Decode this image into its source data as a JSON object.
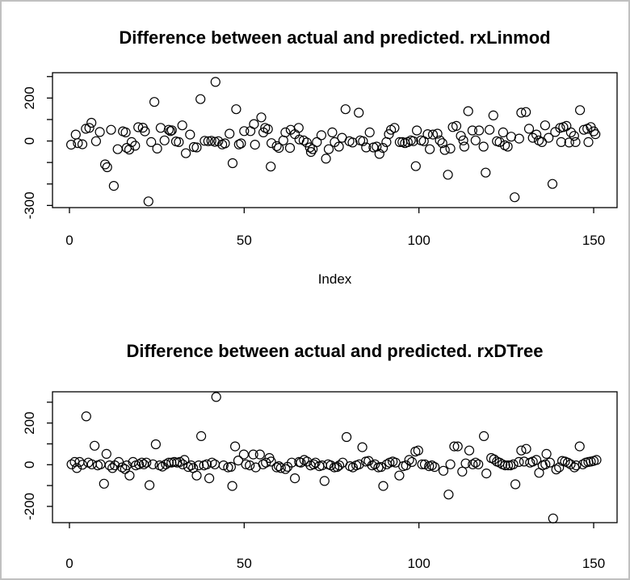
{
  "window": {
    "background": "#ffffff",
    "border_color": "#c0c0c0",
    "foreground": "#000000"
  },
  "chart_data": [
    {
      "type": "scatter",
      "title": "Difference between actual and predicted. rxLinmod",
      "xlabel": "Index",
      "ylabel": "",
      "marker": "open-circle",
      "marker_color": "#000000",
      "grid": false,
      "legend": null,
      "xlim": [
        -4.85,
        156.7
      ],
      "ylim": [
        -310,
        318
      ],
      "x_ticks": [
        0,
        50,
        100,
        150
      ],
      "x_tick_labels": [
        "0",
        "50",
        "100",
        "150"
      ],
      "y_ticks": [
        300,
        200,
        100,
        0,
        -100,
        -200,
        -300
      ],
      "y_tick_labels": [
        "",
        "200",
        "",
        "0",
        "",
        "",
        "-300"
      ],
      "points": [
        [
          0.5,
          -17
        ],
        [
          1.8,
          30
        ],
        [
          2.4,
          -10
        ],
        [
          3.7,
          -15
        ],
        [
          4.7,
          57
        ],
        [
          5.7,
          61
        ],
        [
          6.3,
          85
        ],
        [
          7.6,
          -1
        ],
        [
          8.7,
          42
        ],
        [
          10.2,
          -109
        ],
        [
          10.8,
          -122
        ],
        [
          11.9,
          52
        ],
        [
          12.7,
          -209
        ],
        [
          13.8,
          -38
        ],
        [
          15.3,
          45
        ],
        [
          16.1,
          40
        ],
        [
          16.4,
          -32
        ],
        [
          17.1,
          -40
        ],
        [
          17.8,
          -5
        ],
        [
          18.8,
          -22
        ],
        [
          19.7,
          64
        ],
        [
          21,
          62
        ],
        [
          21.6,
          45
        ],
        [
          22.6,
          -281
        ],
        [
          23.4,
          -5
        ],
        [
          24.3,
          182
        ],
        [
          25.1,
          -35
        ],
        [
          26.1,
          61
        ],
        [
          27.2,
          3
        ],
        [
          28.4,
          52
        ],
        [
          28.9,
          46
        ],
        [
          29.3,
          50
        ],
        [
          30.5,
          -2
        ],
        [
          31.3,
          -5
        ],
        [
          32.3,
          73
        ],
        [
          33.3,
          -57
        ],
        [
          34.5,
          30
        ],
        [
          35.6,
          -28
        ],
        [
          36.4,
          -30
        ],
        [
          37.5,
          195
        ],
        [
          38.7,
          1
        ],
        [
          39.7,
          -1
        ],
        [
          40.6,
          1
        ],
        [
          41.6,
          -4
        ],
        [
          41.8,
          275
        ],
        [
          42.6,
          -1
        ],
        [
          43.7,
          -16
        ],
        [
          44.5,
          -11
        ],
        [
          45.8,
          34
        ],
        [
          46.7,
          -103
        ],
        [
          47.7,
          148
        ],
        [
          48.5,
          -16
        ],
        [
          49.1,
          -11
        ],
        [
          50,
          46
        ],
        [
          51.8,
          46
        ],
        [
          52.8,
          79
        ],
        [
          53.1,
          -17
        ],
        [
          54.9,
          110
        ],
        [
          55.5,
          40
        ],
        [
          56,
          61
        ],
        [
          56.8,
          55
        ],
        [
          57.6,
          -119
        ],
        [
          57.8,
          -10
        ],
        [
          59.3,
          -24
        ],
        [
          59.9,
          -32
        ],
        [
          61.2,
          3
        ],
        [
          61.8,
          40
        ],
        [
          63.1,
          -32
        ],
        [
          63.3,
          52
        ],
        [
          64.5,
          32
        ],
        [
          65.6,
          61
        ],
        [
          65.8,
          7
        ],
        [
          67,
          3
        ],
        [
          67.9,
          -7
        ],
        [
          68.8,
          -30
        ],
        [
          69.1,
          -51
        ],
        [
          69.6,
          -38
        ],
        [
          70.8,
          -5
        ],
        [
          72.1,
          27
        ],
        [
          73.4,
          -82
        ],
        [
          74.2,
          -38
        ],
        [
          75.2,
          40
        ],
        [
          75.9,
          -5
        ],
        [
          77.1,
          -26
        ],
        [
          78,
          15
        ],
        [
          79,
          148
        ],
        [
          80.1,
          -1
        ],
        [
          81,
          -7
        ],
        [
          82.8,
          132
        ],
        [
          83.2,
          3
        ],
        [
          84,
          -1
        ],
        [
          84.9,
          -30
        ],
        [
          85.9,
          40
        ],
        [
          87,
          -30
        ],
        [
          87.9,
          -26
        ],
        [
          88.7,
          -60
        ],
        [
          89.7,
          -32
        ],
        [
          90.7,
          -5
        ],
        [
          91.4,
          32
        ],
        [
          92,
          52
        ],
        [
          93,
          61
        ],
        [
          94.5,
          -5
        ],
        [
          95.3,
          -5
        ],
        [
          96,
          -10
        ],
        [
          96.8,
          -5
        ],
        [
          97.7,
          3
        ],
        [
          98.4,
          -1
        ],
        [
          99.1,
          -117
        ],
        [
          99.4,
          49
        ],
        [
          100.6,
          3
        ],
        [
          101.4,
          -1
        ],
        [
          102.5,
          32
        ],
        [
          103.1,
          -38
        ],
        [
          104,
          30
        ],
        [
          105.3,
          34
        ],
        [
          106,
          3
        ],
        [
          106.7,
          -10
        ],
        [
          107.4,
          -42
        ],
        [
          108.3,
          -157
        ],
        [
          109,
          -35
        ],
        [
          109.7,
          65
        ],
        [
          110.7,
          70
        ],
        [
          112,
          24
        ],
        [
          112.7,
          3
        ],
        [
          113,
          -26
        ],
        [
          114.1,
          139
        ],
        [
          115.3,
          49
        ],
        [
          116.2,
          3
        ],
        [
          117.2,
          49
        ],
        [
          118.5,
          -26
        ],
        [
          119.1,
          -147
        ],
        [
          120.2,
          52
        ],
        [
          121.3,
          119
        ],
        [
          122.3,
          -1
        ],
        [
          123.1,
          -5
        ],
        [
          124.1,
          40
        ],
        [
          124.6,
          -20
        ],
        [
          125.4,
          -26
        ],
        [
          126.4,
          20
        ],
        [
          127.4,
          -262
        ],
        [
          128.7,
          11
        ],
        [
          129.3,
          132
        ],
        [
          130.6,
          135
        ],
        [
          131.5,
          57
        ],
        [
          132.6,
          15
        ],
        [
          133.6,
          30
        ],
        [
          134.3,
          3
        ],
        [
          135.2,
          -5
        ],
        [
          136.1,
          73
        ],
        [
          137.1,
          15
        ],
        [
          138.2,
          -200
        ],
        [
          139,
          42
        ],
        [
          140.4,
          61
        ],
        [
          140.7,
          -5
        ],
        [
          141.3,
          65
        ],
        [
          142.2,
          70
        ],
        [
          143,
          -7
        ],
        [
          143.5,
          40
        ],
        [
          144.4,
          24
        ],
        [
          144.8,
          -5
        ],
        [
          146.1,
          144
        ],
        [
          147.2,
          52
        ],
        [
          148.2,
          57
        ],
        [
          148.5,
          -5
        ],
        [
          149.2,
          65
        ],
        [
          150,
          45
        ],
        [
          150.5,
          32
        ]
      ]
    },
    {
      "type": "scatter",
      "title": "Difference between actual and predicted. rxDTree",
      "xlabel": "",
      "ylabel": "",
      "marker": "open-circle",
      "marker_color": "#000000",
      "grid": false,
      "legend": null,
      "xlim": [
        -4.85,
        156.7
      ],
      "ylim": [
        -278,
        350
      ],
      "x_ticks": [
        0,
        50,
        100,
        150
      ],
      "x_tick_labels": [
        "0",
        "50",
        "100",
        "150"
      ],
      "y_ticks": [
        300,
        200,
        100,
        0,
        -100,
        -200
      ],
      "y_tick_labels": [
        "",
        "200",
        "",
        "0",
        "",
        "-200"
      ],
      "points": [
        [
          0.6,
          2
        ],
        [
          1.5,
          13
        ],
        [
          2.1,
          -16
        ],
        [
          2.9,
          13
        ],
        [
          3.7,
          0
        ],
        [
          4.8,
          232
        ],
        [
          5.4,
          10
        ],
        [
          6.4,
          2
        ],
        [
          7.2,
          91
        ],
        [
          8.1,
          -3
        ],
        [
          8.9,
          2
        ],
        [
          9.9,
          -91
        ],
        [
          10.6,
          52
        ],
        [
          11.5,
          -3
        ],
        [
          12.3,
          -16
        ],
        [
          13,
          -3
        ],
        [
          14.1,
          13
        ],
        [
          15.1,
          -13
        ],
        [
          15.9,
          -21
        ],
        [
          16.4,
          -3
        ],
        [
          17.2,
          -52
        ],
        [
          18.2,
          13
        ],
        [
          19,
          -3
        ],
        [
          19.9,
          2
        ],
        [
          20.7,
          10
        ],
        [
          21.3,
          2
        ],
        [
          22,
          10
        ],
        [
          22.9,
          -98
        ],
        [
          23.9,
          2
        ],
        [
          24.7,
          98
        ],
        [
          25.8,
          -3
        ],
        [
          26.6,
          -9
        ],
        [
          27.6,
          2
        ],
        [
          28.4,
          10
        ],
        [
          29.2,
          10
        ],
        [
          30,
          13
        ],
        [
          30.8,
          10
        ],
        [
          31.6,
          13
        ],
        [
          32.4,
          2
        ],
        [
          32.9,
          23
        ],
        [
          34,
          -11
        ],
        [
          34.8,
          -3
        ],
        [
          35.4,
          -16
        ],
        [
          36.4,
          -52
        ],
        [
          37,
          -3
        ],
        [
          37.7,
          137
        ],
        [
          38.5,
          -3
        ],
        [
          39.3,
          2
        ],
        [
          40,
          -65
        ],
        [
          40.8,
          10
        ],
        [
          41.6,
          2
        ],
        [
          42,
          325
        ],
        [
          44.1,
          -3
        ],
        [
          45.4,
          -13
        ],
        [
          46.2,
          -10
        ],
        [
          46.6,
          -102
        ],
        [
          47.4,
          88
        ],
        [
          48.3,
          20
        ],
        [
          49.9,
          49
        ],
        [
          50.5,
          2
        ],
        [
          51.6,
          -3
        ],
        [
          52.6,
          49
        ],
        [
          53.3,
          -13
        ],
        [
          54.5,
          49
        ],
        [
          55.4,
          2
        ],
        [
          56.2,
          10
        ],
        [
          57.2,
          32
        ],
        [
          57.7,
          15
        ],
        [
          59.3,
          -13
        ],
        [
          59.9,
          -7
        ],
        [
          60.5,
          -16
        ],
        [
          61.8,
          -21
        ],
        [
          62.4,
          -10
        ],
        [
          63.6,
          10
        ],
        [
          64.5,
          -65
        ],
        [
          65.7,
          13
        ],
        [
          66.2,
          10
        ],
        [
          67.2,
          23
        ],
        [
          68,
          15
        ],
        [
          69,
          -3
        ],
        [
          69.9,
          2
        ],
        [
          70.4,
          10
        ],
        [
          71.5,
          -7
        ],
        [
          72.3,
          -3
        ],
        [
          73,
          -78
        ],
        [
          74,
          2
        ],
        [
          74.8,
          -3
        ],
        [
          75.8,
          -13
        ],
        [
          76.6,
          -11
        ],
        [
          77.2,
          -3
        ],
        [
          78.2,
          10
        ],
        [
          79.3,
          133
        ],
        [
          80.3,
          -7
        ],
        [
          81.1,
          -13
        ],
        [
          82.1,
          -3
        ],
        [
          82.9,
          2
        ],
        [
          83.8,
          84
        ],
        [
          84.8,
          15
        ],
        [
          85.6,
          18
        ],
        [
          86.6,
          -3
        ],
        [
          87.4,
          2
        ],
        [
          88.4,
          -13
        ],
        [
          89.2,
          -11
        ],
        [
          89.8,
          -102
        ],
        [
          90.8,
          2
        ],
        [
          91.6,
          10
        ],
        [
          92.5,
          15
        ],
        [
          93.3,
          10
        ],
        [
          94.4,
          -52
        ],
        [
          95.5,
          -7
        ],
        [
          96.3,
          -3
        ],
        [
          97.2,
          23
        ],
        [
          98,
          13
        ],
        [
          99,
          63
        ],
        [
          99.8,
          68
        ],
        [
          100.9,
          2
        ],
        [
          101.7,
          2
        ],
        [
          102.9,
          -7
        ],
        [
          103.7,
          -3
        ],
        [
          104.5,
          -11
        ],
        [
          107,
          -29
        ],
        [
          108.5,
          -143
        ],
        [
          109,
          2
        ],
        [
          110.1,
          88
        ],
        [
          111.1,
          88
        ],
        [
          112.4,
          -33
        ],
        [
          113.4,
          6
        ],
        [
          114.4,
          68
        ],
        [
          115.4,
          2
        ],
        [
          116.2,
          10
        ],
        [
          117,
          2
        ],
        [
          118.6,
          137
        ],
        [
          119.3,
          -42
        ],
        [
          120.7,
          32
        ],
        [
          121.5,
          26
        ],
        [
          122.3,
          15
        ],
        [
          123.1,
          10
        ],
        [
          123.9,
          2
        ],
        [
          124.7,
          -3
        ],
        [
          125.5,
          -3
        ],
        [
          126.2,
          -3
        ],
        [
          127,
          2
        ],
        [
          127.6,
          -94
        ],
        [
          128.6,
          13
        ],
        [
          129.3,
          68
        ],
        [
          130.1,
          15
        ],
        [
          130.7,
          76
        ],
        [
          131.8,
          10
        ],
        [
          132.6,
          15
        ],
        [
          133.6,
          23
        ],
        [
          134.4,
          -39
        ],
        [
          135.4,
          -3
        ],
        [
          136.2,
          2
        ],
        [
          136.5,
          52
        ],
        [
          137.5,
          10
        ],
        [
          138.4,
          -258
        ],
        [
          139.3,
          -23
        ],
        [
          140.1,
          -13
        ],
        [
          141,
          18
        ],
        [
          141.8,
          15
        ],
        [
          142.6,
          10
        ],
        [
          143.4,
          2
        ],
        [
          144.5,
          -13
        ],
        [
          145,
          -3
        ],
        [
          146,
          88
        ],
        [
          146.9,
          2
        ],
        [
          147.7,
          10
        ],
        [
          148.5,
          13
        ],
        [
          149.2,
          15
        ],
        [
          150,
          18
        ],
        [
          150.8,
          23
        ]
      ]
    }
  ]
}
